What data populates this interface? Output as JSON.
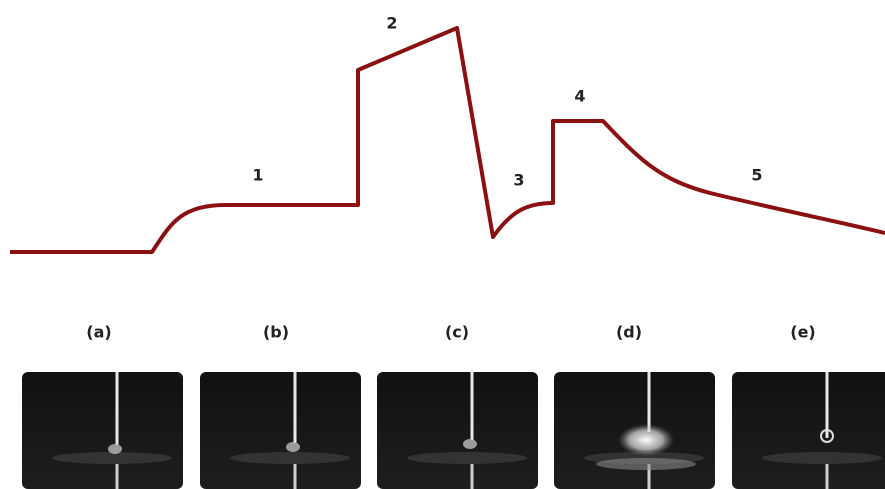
{
  "phase_labels": [
    "1",
    "2",
    "3",
    "4",
    "5"
  ],
  "panel_labels": [
    "(a)",
    "(b)",
    "(c)",
    "(d)",
    "(e)"
  ]
}
